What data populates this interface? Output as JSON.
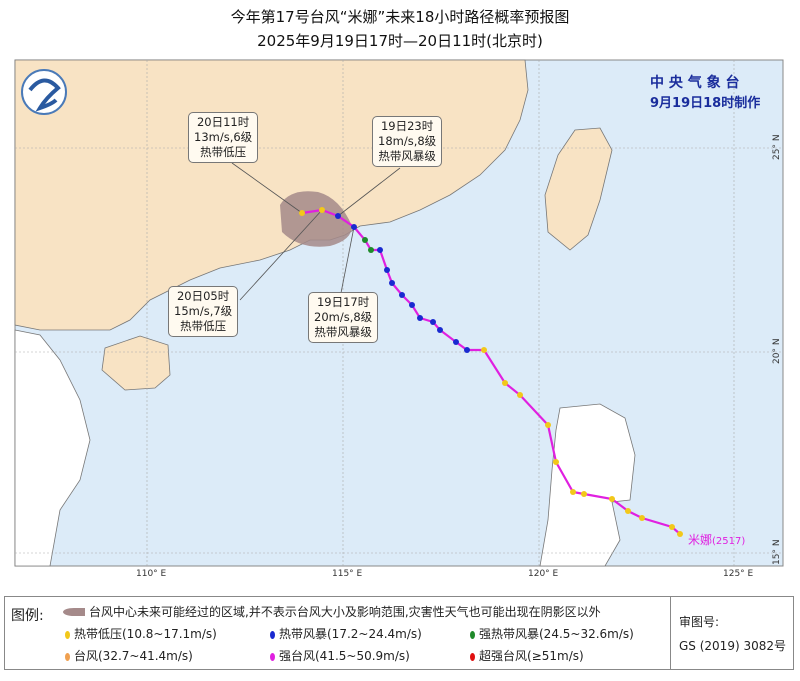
{
  "title": {
    "line1": "今年第17号台风“米娜”未来18小时路径概率预报图",
    "line2": "2025年9月19日17时—20日11时(北京时)"
  },
  "agency": {
    "name": "中 央 气 象 台",
    "issued": "9月19日18时制作"
  },
  "typhoon_label": "米娜",
  "typhoon_code": "(2517)",
  "axes": {
    "lon_ticks": [
      "110° E",
      "115° E",
      "120° E",
      "125° E"
    ],
    "lat_ticks": [
      "25° N",
      "20° N",
      "15° N"
    ]
  },
  "annotations": [
    {
      "time": "20日11时",
      "wind": "13m/s,6级",
      "grade": "热带低压"
    },
    {
      "time": "19日23时",
      "wind": "18m/s,8级",
      "grade": "热带风暴级"
    },
    {
      "time": "20日05时",
      "wind": "15m/s,7级",
      "grade": "热带低压"
    },
    {
      "time": "19日17时",
      "wind": "20m/s,8级",
      "grade": "热带风暴级"
    }
  ],
  "legend": {
    "heading": "图例:",
    "cone": "台风中心未来可能经过的区域,并不表示台风大小及影响范围,灾害性天气也可能出现在阴影区以外",
    "items": [
      {
        "label": "热带低压(10.8~17.1m/s)",
        "color": "#f2c81a"
      },
      {
        "label": "热带风暴(17.2~24.4m/s)",
        "color": "#1a2ad0"
      },
      {
        "label": "强热带风暴(24.5~32.6m/s)",
        "color": "#1f8a2a"
      },
      {
        "label": "台风(32.7~41.4m/s)",
        "color": "#f0a050"
      },
      {
        "label": "强台风(41.5~50.9m/s)",
        "color": "#e020e0"
      },
      {
        "label": "超强台风(≥51m/s)",
        "color": "#e01010"
      }
    ],
    "review_label": "审图号:",
    "review_no": "GS (2019) 3082号"
  },
  "colors": {
    "sea": "#dcebf8",
    "china_land": "#f8e3c4",
    "other_land": "#ffffff",
    "track": "#e020e0",
    "cone": "#a58a8a"
  }
}
